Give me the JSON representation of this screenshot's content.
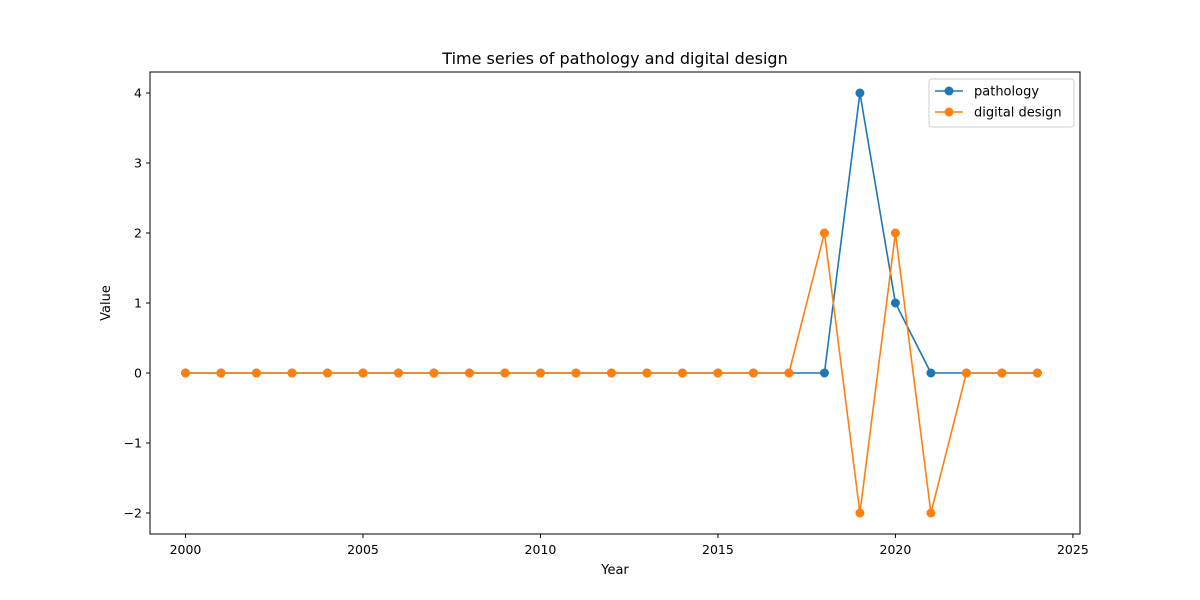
{
  "chart_data": {
    "type": "line",
    "title": "Time series of pathology and digital design",
    "xlabel": "Year",
    "ylabel": "Value",
    "xlim": [
      1999.0,
      2025.2
    ],
    "ylim": [
      -2.3,
      4.3
    ],
    "xticks": [
      2000,
      2005,
      2010,
      2015,
      2020,
      2025
    ],
    "yticks": [
      -2,
      -1,
      0,
      1,
      2,
      3,
      4
    ],
    "grid": false,
    "legend_position": "top-right",
    "x": [
      2000,
      2001,
      2002,
      2003,
      2004,
      2005,
      2006,
      2007,
      2008,
      2009,
      2010,
      2011,
      2012,
      2013,
      2014,
      2015,
      2016,
      2017,
      2018,
      2019,
      2020,
      2021,
      2022,
      2023,
      2024
    ],
    "series": [
      {
        "name": "pathology",
        "color": "#1f77b4",
        "marker": "circle",
        "values": [
          0,
          0,
          0,
          0,
          0,
          0,
          0,
          0,
          0,
          0,
          0,
          0,
          0,
          0,
          0,
          0,
          0,
          0,
          0,
          4,
          1,
          0,
          0,
          0,
          0
        ]
      },
      {
        "name": "digital design",
        "color": "#ff7f0e",
        "marker": "circle",
        "values": [
          0,
          0,
          0,
          0,
          0,
          0,
          0,
          0,
          0,
          0,
          0,
          0,
          0,
          0,
          0,
          0,
          0,
          0,
          2,
          -2,
          2,
          -2,
          0,
          0,
          0
        ]
      }
    ]
  }
}
